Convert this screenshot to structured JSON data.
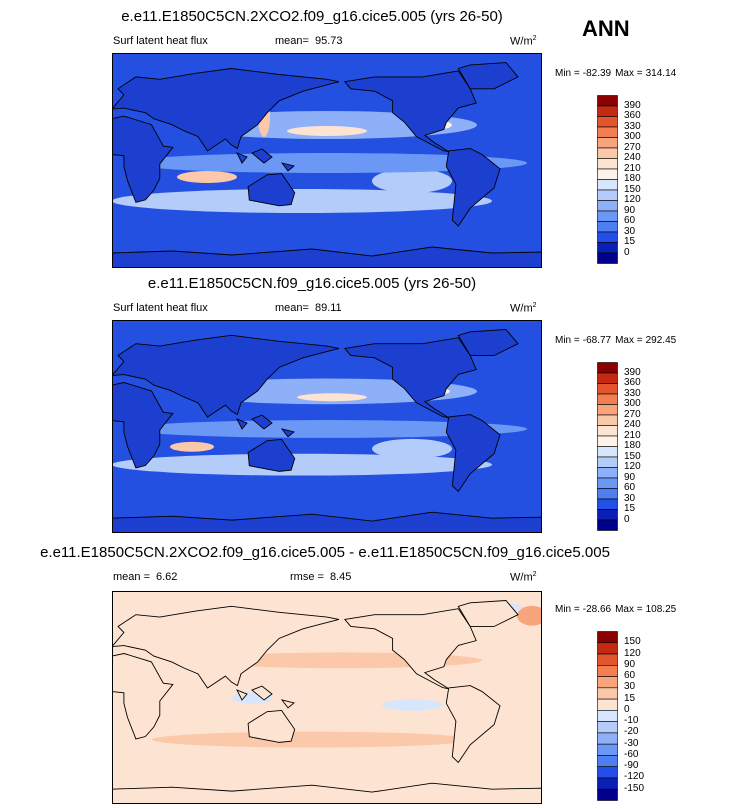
{
  "label": "ANN",
  "panels": [
    {
      "title": "e.e11.E1850C5CN.2XCO2.f09_g16.cice5.005 (yrs 26-50)",
      "variable": "Surf latent heat flux",
      "mean_label": "mean=",
      "mean": 95.73,
      "units": "W/m",
      "units_exponent": "2",
      "min_label": "Min =",
      "min": -82.39,
      "max_label": "Max =",
      "max": 314.14,
      "colorbar": {
        "levels": [
          390,
          360,
          330,
          300,
          270,
          240,
          210,
          180,
          150,
          120,
          90,
          60,
          30,
          15,
          0
        ],
        "colors": [
          "#8b0000",
          "#c22a12",
          "#e2552d",
          "#f27f52",
          "#f8a47c",
          "#fbc8aa",
          "#fde4d2",
          "#fdf3ea",
          "#d8e6fc",
          "#b3ccfa",
          "#8db0f8",
          "#6b97f5",
          "#4d7ef2",
          "#2250e6",
          "#0a1fb4",
          "#00008a"
        ]
      }
    },
    {
      "title": "e.e11.E1850C5CN.f09_g16.cice5.005 (yrs 26-50)",
      "variable": "Surf latent heat flux",
      "mean_label": "mean=",
      "mean": 89.11,
      "units": "W/m",
      "units_exponent": "2",
      "min_label": "Min =",
      "min": -68.77,
      "max_label": "Max =",
      "max": 292.45,
      "colorbar": {
        "levels": [
          390,
          360,
          330,
          300,
          270,
          240,
          210,
          180,
          150,
          120,
          90,
          60,
          30,
          15,
          0
        ],
        "colors": [
          "#8b0000",
          "#c22a12",
          "#e2552d",
          "#f27f52",
          "#f8a47c",
          "#fbc8aa",
          "#fde4d2",
          "#fdf3ea",
          "#d8e6fc",
          "#b3ccfa",
          "#8db0f8",
          "#6b97f5",
          "#4d7ef2",
          "#2250e6",
          "#0a1fb4",
          "#00008a"
        ]
      }
    },
    {
      "title": "e.e11.E1850C5CN.2XCO2.f09_g16.cice5.005 - e.e11.E1850C5CN.f09_g16.cice5.005",
      "mean_label": "mean =",
      "mean": 6.62,
      "rmse_label": "rmse =",
      "rmse": 8.45,
      "units": "W/m",
      "units_exponent": "2",
      "min_label": "Min =",
      "min": -28.66,
      "max_label": "Max =",
      "max": 108.25,
      "colorbar": {
        "levels": [
          150,
          120,
          90,
          60,
          30,
          15,
          0,
          -10,
          -20,
          -30,
          -60,
          -90,
          -120,
          -150
        ],
        "colors": [
          "#8b0000",
          "#c22a12",
          "#e2552d",
          "#f27f52",
          "#f8a47c",
          "#fbc8aa",
          "#fde4d2",
          "#d8e6fc",
          "#b3ccfa",
          "#8db0f8",
          "#6b97f5",
          "#4d7ef2",
          "#2250e6",
          "#0a1fb4",
          "#00008a"
        ]
      }
    }
  ]
}
